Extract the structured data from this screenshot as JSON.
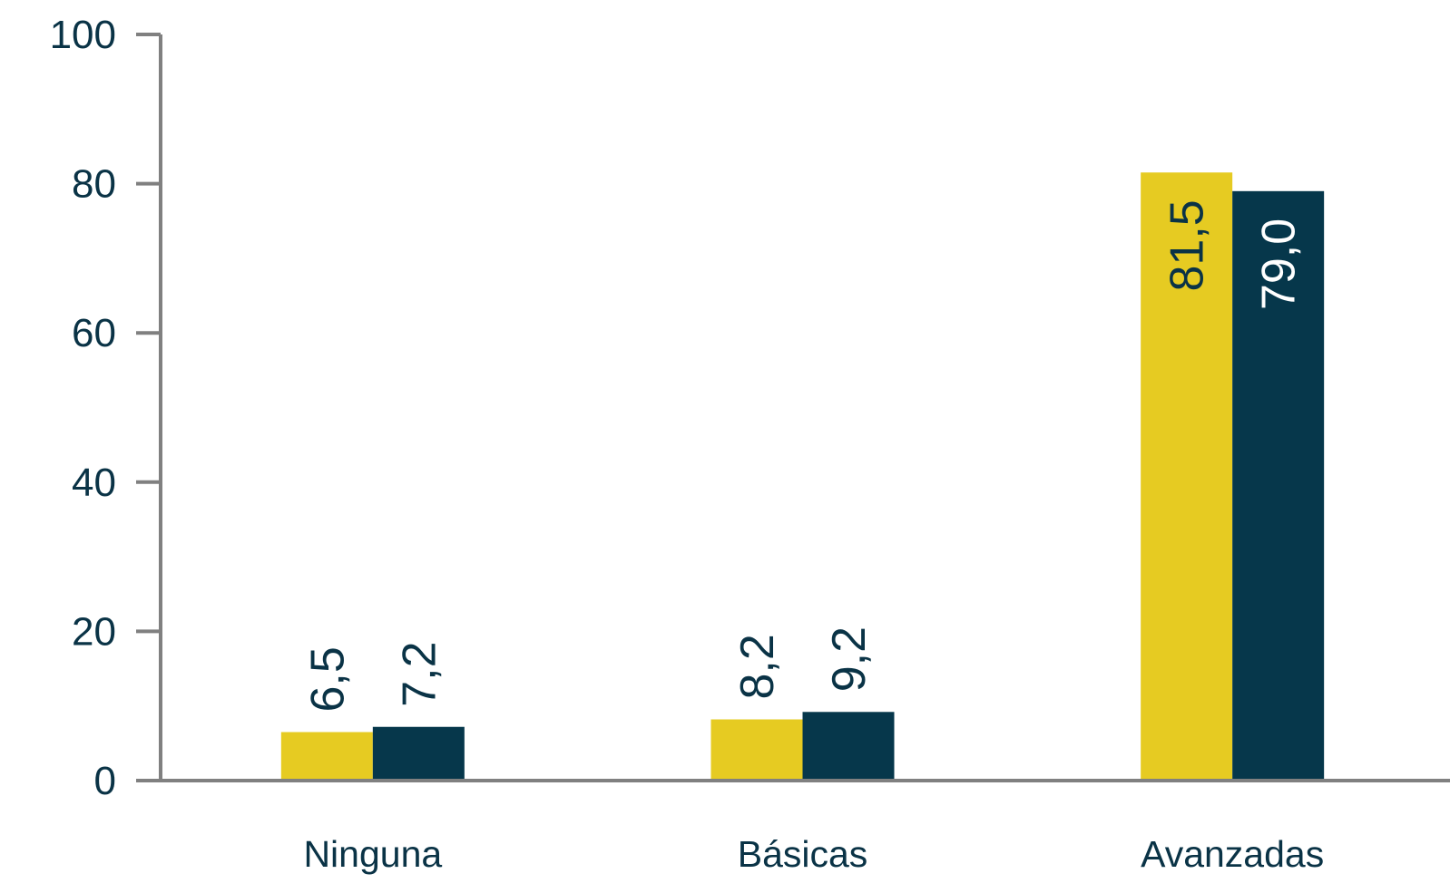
{
  "chart_data": {
    "type": "bar",
    "categories": [
      "Ninguna",
      "Básicas",
      "Avanzadas"
    ],
    "series": [
      {
        "values": [
          6.5,
          8.2,
          81.5
        ],
        "labels": [
          "6,5",
          "8,2",
          "81,5"
        ],
        "color": "#e6cb22"
      },
      {
        "values": [
          7.2,
          9.2,
          79.0
        ],
        "labels": [
          "7,2",
          "9,2",
          "79,0"
        ],
        "color": "#06374b"
      }
    ],
    "yticks": [
      0,
      20,
      40,
      60,
      80,
      100
    ],
    "ylim": [
      0,
      100
    ],
    "title": "",
    "xlabel": "",
    "ylabel": "",
    "grid": false,
    "axis_color": "#808080",
    "text_color": "#0a3346",
    "label_on_dark_color": "#ffffff"
  }
}
